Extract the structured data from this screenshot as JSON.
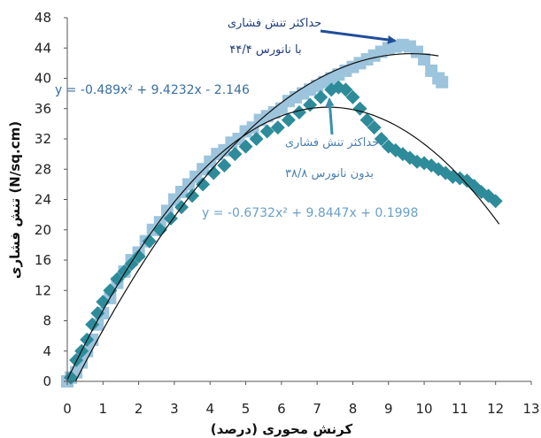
{
  "chart_data": {
    "type": "scatter",
    "xlabel": "کرنش محوری (درصد)",
    "ylabel": "تنش فشاری (N/sq.cm)",
    "xlim": [
      0,
      13
    ],
    "ylim": [
      0,
      48
    ],
    "x_ticks": [
      "0",
      "1",
      "2",
      "3",
      "4",
      "5",
      "6",
      "7",
      "8",
      "9",
      "10",
      "11",
      "12",
      "13"
    ],
    "y_ticks": [
      "0",
      "4",
      "8",
      "12",
      "16",
      "20",
      "24",
      "28",
      "32",
      "36",
      "40",
      "44",
      "48"
    ],
    "grid": false,
    "series": [
      {
        "marker": "square",
        "color": "#9cc4dc",
        "x": [
          0,
          0.1,
          0.25,
          0.4,
          0.55,
          0.7,
          0.85,
          1.0,
          1.2,
          1.4,
          1.6,
          1.8,
          2.0,
          2.2,
          2.4,
          2.6,
          2.8,
          3.0,
          3.2,
          3.4,
          3.6,
          3.8,
          4.0,
          4.2,
          4.4,
          4.6,
          4.8,
          5.0,
          5.2,
          5.4,
          5.6,
          5.8,
          6.0,
          6.2,
          6.4,
          6.6,
          6.8,
          7.0,
          7.2,
          7.4,
          7.6,
          7.8,
          8.0,
          8.2,
          8.4,
          8.6,
          8.8,
          9.0,
          9.2,
          9.4,
          9.6,
          9.8,
          10.0,
          10.2,
          10.4,
          10.5
        ],
        "y": [
          0,
          0.5,
          1.2,
          2.5,
          4,
          5.5,
          7.5,
          9,
          11,
          13,
          14.5,
          16,
          17,
          18.5,
          20,
          21,
          22.5,
          24,
          25,
          26,
          27,
          28,
          29,
          30,
          30.5,
          31.5,
          32,
          33,
          33.5,
          34.5,
          35,
          35.5,
          36,
          37,
          37.5,
          38,
          38.5,
          39,
          39.5,
          40,
          40.5,
          41,
          41.5,
          42,
          42.5,
          43,
          43.5,
          44,
          44.2,
          44.4,
          44.2,
          43.5,
          42.5,
          41,
          40,
          39.5
        ]
      },
      {
        "marker": "diamond",
        "color": "#2e8b9a",
        "x": [
          0.1,
          0.25,
          0.4,
          0.55,
          0.7,
          0.85,
          1.0,
          1.2,
          1.4,
          1.6,
          1.8,
          2.0,
          2.3,
          2.6,
          2.9,
          3.2,
          3.5,
          3.8,
          4.1,
          4.4,
          4.7,
          5.0,
          5.3,
          5.6,
          5.9,
          6.2,
          6.5,
          6.8,
          7.1,
          7.4,
          7.6,
          7.8,
          8.0,
          8.2,
          8.4,
          8.6,
          8.8,
          9.0,
          9.2,
          9.4,
          9.6,
          9.8,
          10.0,
          10.2,
          10.4,
          10.6,
          10.8,
          11.0,
          11.2,
          11.4,
          11.6,
          11.8,
          12.0
        ],
        "y": [
          0.5,
          2.8,
          4,
          5.5,
          7.5,
          9,
          10.5,
          12,
          13.5,
          14.5,
          15.5,
          16.5,
          18.5,
          20,
          21.5,
          23,
          24.5,
          26,
          27.5,
          28.5,
          30,
          31,
          32,
          33,
          33.5,
          34.5,
          35.5,
          36.5,
          37.5,
          38.5,
          38.8,
          38.5,
          37.5,
          36,
          34.5,
          33.5,
          32,
          31,
          30.5,
          30,
          29.5,
          29,
          28.8,
          28.5,
          28,
          27.5,
          27,
          26.8,
          26.5,
          25.8,
          25,
          24.5,
          23.8
        ]
      }
    ],
    "trendlines": [
      {
        "type": "polynomial",
        "order": 2,
        "a": -0.489,
        "b": 9.4232,
        "c": -2.146,
        "x_range": [
          0.23,
          10.4
        ],
        "equation": "y = -0.489x² + 9.4232x - 2.146",
        "color": "#111111"
      },
      {
        "type": "polynomial",
        "order": 2,
        "a": -0.6732,
        "b": 9.8447,
        "c": 0.1998,
        "x_range": [
          0,
          12.1
        ],
        "equation": "y = -0.6732x² + 9.8447x + 0.1998",
        "color": "#111111"
      }
    ],
    "annotations": [
      {
        "lines": [
          "حداکثر تنش فشاری",
          "با نانورس ۴۴/۴"
        ],
        "color": "#1f3f7a",
        "points_to": [
          9.4,
          44.4
        ]
      },
      {
        "lines": [
          "حداکثر تنش فشاری",
          "بدون نانورس ۳۸/۸"
        ],
        "color": "#3a6fa0",
        "points_to": [
          7.4,
          38.8
        ]
      }
    ]
  }
}
